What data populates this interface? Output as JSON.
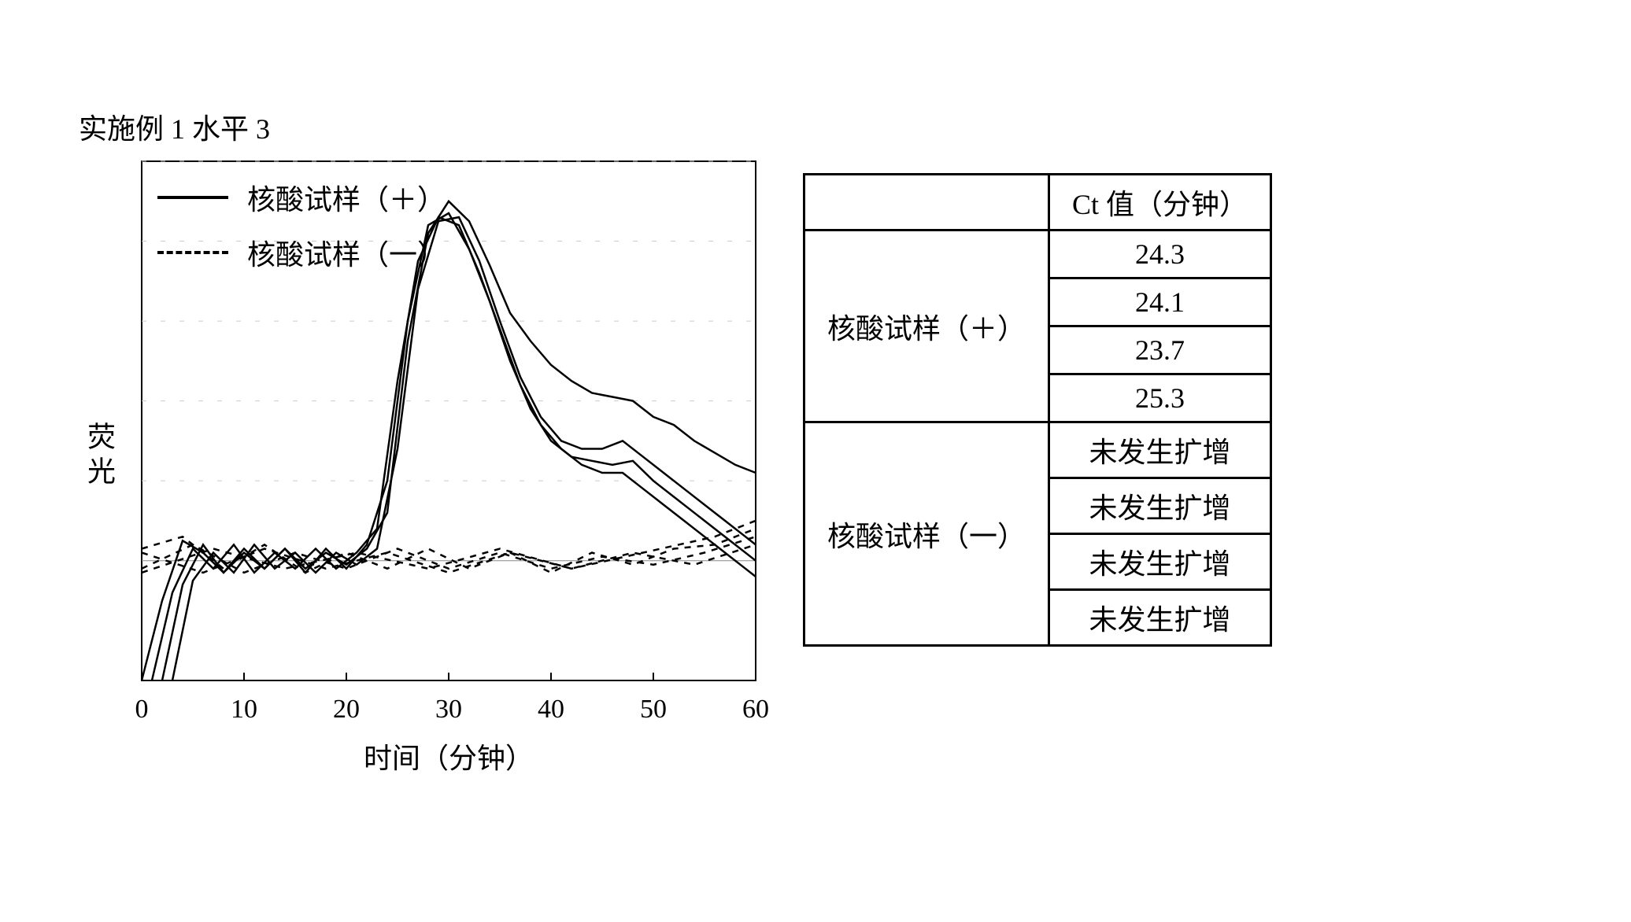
{
  "title": "实施例 1   水平 3",
  "chart": {
    "type": "line",
    "y_label": "荧光",
    "x_label": "时间（分钟）",
    "xlim": [
      0,
      60
    ],
    "ylim": [
      -30,
      100
    ],
    "x_ticks": [
      0,
      10,
      20,
      30,
      40,
      50,
      60
    ],
    "x_tick_labels": [
      "0",
      "10",
      "20",
      "30",
      "40",
      "50",
      "60"
    ],
    "grid_y": [
      20,
      40,
      60,
      80,
      100
    ],
    "grid_color": "#cccccc",
    "border_color": "#000000",
    "line_color": "#000000",
    "line_width": 2.5,
    "legend": [
      {
        "label": "核酸试样（＋）",
        "dash": "solid"
      },
      {
        "label": "核酸试样（一）",
        "dash": "dashed"
      }
    ],
    "series_solid": [
      {
        "pts": [
          [
            0,
            -30
          ],
          [
            2,
            -10
          ],
          [
            4,
            5
          ],
          [
            6,
            2
          ],
          [
            8,
            -3
          ],
          [
            10,
            2
          ],
          [
            12,
            -2
          ],
          [
            14,
            3
          ],
          [
            16,
            -2
          ],
          [
            18,
            2
          ],
          [
            20,
            -1
          ],
          [
            22,
            3
          ],
          [
            24,
            12
          ],
          [
            26,
            55
          ],
          [
            28,
            82
          ],
          [
            30,
            90
          ],
          [
            32,
            85
          ],
          [
            34,
            74
          ],
          [
            36,
            62
          ],
          [
            38,
            55
          ],
          [
            40,
            49
          ],
          [
            42,
            45
          ],
          [
            44,
            42
          ],
          [
            46,
            41
          ],
          [
            48,
            40
          ],
          [
            50,
            36
          ],
          [
            52,
            34
          ],
          [
            54,
            30
          ],
          [
            56,
            27
          ],
          [
            58,
            24
          ],
          [
            60,
            22
          ]
        ]
      },
      {
        "pts": [
          [
            1,
            -30
          ],
          [
            3,
            -8
          ],
          [
            5,
            3
          ],
          [
            7,
            -2
          ],
          [
            9,
            4
          ],
          [
            11,
            -3
          ],
          [
            13,
            2
          ],
          [
            15,
            -2
          ],
          [
            17,
            3
          ],
          [
            19,
            -2
          ],
          [
            21,
            2
          ],
          [
            23,
            8
          ],
          [
            25,
            45
          ],
          [
            27,
            75
          ],
          [
            29,
            86
          ],
          [
            31,
            84
          ],
          [
            33,
            72
          ],
          [
            35,
            58
          ],
          [
            37,
            44
          ],
          [
            39,
            34
          ],
          [
            41,
            28
          ],
          [
            43,
            24
          ],
          [
            45,
            22
          ],
          [
            47,
            22
          ],
          [
            49,
            18
          ],
          [
            51,
            14
          ],
          [
            53,
            10
          ],
          [
            55,
            6
          ],
          [
            57,
            2
          ],
          [
            59,
            -2
          ],
          [
            60,
            -4
          ]
        ]
      },
      {
        "pts": [
          [
            2,
            -30
          ],
          [
            4,
            -6
          ],
          [
            6,
            4
          ],
          [
            8,
            -3
          ],
          [
            10,
            3
          ],
          [
            12,
            -2
          ],
          [
            14,
            3
          ],
          [
            16,
            -3
          ],
          [
            18,
            3
          ],
          [
            20,
            -2
          ],
          [
            22,
            4
          ],
          [
            24,
            20
          ],
          [
            26,
            60
          ],
          [
            28,
            84
          ],
          [
            30,
            87
          ],
          [
            32,
            78
          ],
          [
            34,
            65
          ],
          [
            36,
            50
          ],
          [
            38,
            38
          ],
          [
            40,
            30
          ],
          [
            42,
            26
          ],
          [
            44,
            25
          ],
          [
            46,
            24
          ],
          [
            48,
            25
          ],
          [
            50,
            20
          ],
          [
            52,
            16
          ],
          [
            54,
            12
          ],
          [
            56,
            8
          ],
          [
            58,
            4
          ],
          [
            60,
            0
          ]
        ]
      },
      {
        "pts": [
          [
            3,
            -30
          ],
          [
            5,
            -5
          ],
          [
            7,
            2
          ],
          [
            9,
            -3
          ],
          [
            11,
            4
          ],
          [
            13,
            -2
          ],
          [
            15,
            2
          ],
          [
            17,
            -3
          ],
          [
            19,
            2
          ],
          [
            21,
            -1
          ],
          [
            23,
            3
          ],
          [
            25,
            28
          ],
          [
            27,
            68
          ],
          [
            29,
            85
          ],
          [
            31,
            86
          ],
          [
            33,
            75
          ],
          [
            35,
            60
          ],
          [
            37,
            46
          ],
          [
            39,
            36
          ],
          [
            41,
            30
          ],
          [
            43,
            28
          ],
          [
            45,
            28
          ],
          [
            47,
            30
          ],
          [
            49,
            26
          ],
          [
            51,
            22
          ],
          [
            53,
            18
          ],
          [
            55,
            14
          ],
          [
            57,
            10
          ],
          [
            59,
            6
          ],
          [
            60,
            4
          ]
        ]
      }
    ],
    "series_dashed": [
      {
        "pts": [
          [
            0,
            3
          ],
          [
            4,
            6
          ],
          [
            8,
            -2
          ],
          [
            12,
            4
          ],
          [
            16,
            -3
          ],
          [
            20,
            2
          ],
          [
            24,
            -2
          ],
          [
            28,
            3
          ],
          [
            32,
            -2
          ],
          [
            36,
            2
          ],
          [
            40,
            -3
          ],
          [
            44,
            2
          ],
          [
            48,
            -1
          ],
          [
            52,
            3
          ],
          [
            56,
            4
          ],
          [
            60,
            8
          ]
        ]
      },
      {
        "pts": [
          [
            0,
            -2
          ],
          [
            5,
            4
          ],
          [
            10,
            -3
          ],
          [
            15,
            2
          ],
          [
            20,
            -2
          ],
          [
            25,
            3
          ],
          [
            30,
            -2
          ],
          [
            35,
            2
          ],
          [
            40,
            -2
          ],
          [
            45,
            1
          ],
          [
            50,
            -1
          ],
          [
            55,
            2
          ],
          [
            60,
            6
          ]
        ]
      },
      {
        "pts": [
          [
            0,
            2
          ],
          [
            6,
            -3
          ],
          [
            12,
            3
          ],
          [
            18,
            -2
          ],
          [
            24,
            2
          ],
          [
            30,
            -3
          ],
          [
            36,
            2
          ],
          [
            42,
            -2
          ],
          [
            48,
            2
          ],
          [
            54,
            -1
          ],
          [
            60,
            4
          ]
        ]
      },
      {
        "pts": [
          [
            0,
            -3
          ],
          [
            7,
            3
          ],
          [
            14,
            -2
          ],
          [
            21,
            2
          ],
          [
            28,
            -2
          ],
          [
            35,
            3
          ],
          [
            42,
            -2
          ],
          [
            49,
            2
          ],
          [
            56,
            6
          ],
          [
            60,
            10
          ]
        ]
      }
    ]
  },
  "table": {
    "header_blank": "",
    "header_ct": "Ct 值（分钟）",
    "groups": [
      {
        "label": "核酸试样（＋）",
        "values": [
          "24.3",
          "24.1",
          "23.7",
          "25.3"
        ],
        "bold": true
      },
      {
        "label": "核酸试样（一）",
        "values": [
          "未发生扩增",
          "未发生扩增",
          "未发生扩增",
          "未发生扩增"
        ],
        "bold": false
      }
    ]
  }
}
